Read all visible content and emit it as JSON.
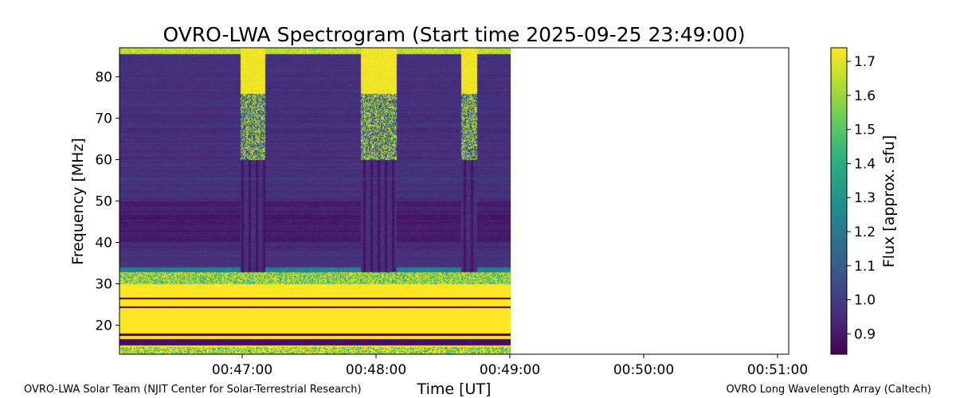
{
  "chart_data": {
    "type": "heatmap",
    "title": "OVRO-LWA Spectrogram (Start time 2025-09-25 23:49:00)",
    "xlabel": "Time [UT]",
    "ylabel": "Frequency [MHz]",
    "xlim": [
      "00:46:05",
      "00:51:05"
    ],
    "ylim": [
      13,
      87
    ],
    "x_ticks": [
      "00:47:00",
      "00:48:00",
      "00:49:00",
      "00:50:00",
      "00:51:00"
    ],
    "y_ticks": [
      "20",
      "30",
      "40",
      "50",
      "60",
      "70",
      "80"
    ],
    "data_extent_time": [
      "00:46:05",
      "00:49:00"
    ],
    "colormap": "viridis",
    "colorbar": {
      "label": "Flux [approx. sfu]",
      "range": [
        0.84,
        1.74
      ],
      "ticks": [
        "0.9",
        "1.0",
        "1.1",
        "1.2",
        "1.3",
        "1.4",
        "1.5",
        "1.6",
        "1.7"
      ]
    },
    "features": {
      "background_level_sfu": 0.96,
      "saturated_low_band_mhz": [
        13,
        30
      ],
      "broadband_bursts_time": [
        [
          "00:46:59",
          "00:47:10"
        ],
        [
          "00:47:53",
          "00:48:09"
        ],
        [
          "00:48:38",
          "00:48:45"
        ]
      ]
    }
  },
  "credits": {
    "left": "OVRO-LWA Solar Team (NJIT Center for Solar-Terrestrial Research)",
    "right": "OVRO Long Wavelength Array (Caltech)"
  }
}
